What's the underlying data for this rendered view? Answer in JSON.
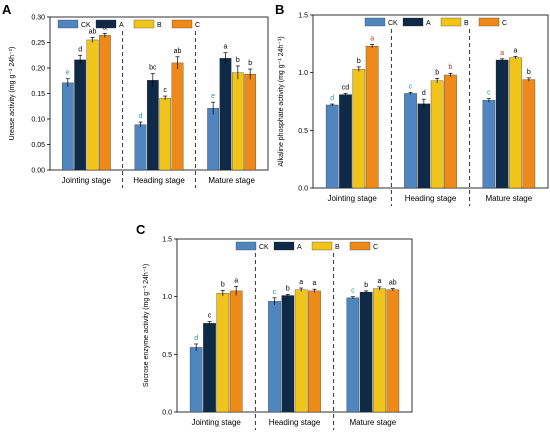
{
  "panel_letters": [
    "A",
    "B",
    "C"
  ],
  "colors": {
    "CK": "#4f86c0",
    "A": "#0e2a47",
    "B": "#f0c419",
    "C": "#ee8a1a",
    "letter_default": "#000000",
    "letter_cyan": "#1a9e8f",
    "letter_red": "#c0392b"
  },
  "chart_data": [
    {
      "type": "bar",
      "panel": "A",
      "ylabel": "Urease activity (mg g⁻¹ 24h⁻¹)",
      "ylim": [
        0,
        0.3
      ],
      "yticks": [
        "0.00",
        "0.05",
        "0.10",
        "0.15",
        "0.20",
        "0.25",
        "0.30"
      ],
      "categories": [
        "Jointing stage",
        "Heading stage",
        "Mature stage"
      ],
      "legend": [
        "CK",
        "A",
        "B",
        "C"
      ],
      "legend_position": "top-left",
      "series": [
        {
          "name": "CK",
          "values": [
            0.171,
            0.089,
            0.121
          ],
          "errors": [
            0.008,
            0.005,
            0.012
          ],
          "letters": [
            "e",
            "d",
            "e"
          ]
        },
        {
          "name": "A",
          "values": [
            0.216,
            0.176,
            0.219
          ],
          "errors": [
            0.009,
            0.013,
            0.011
          ],
          "letters": [
            "d",
            "bc",
            "a"
          ]
        },
        {
          "name": "B",
          "values": [
            0.255,
            0.141,
            0.191
          ],
          "errors": [
            0.005,
            0.004,
            0.013
          ],
          "letters": [
            "ab",
            "c",
            "b"
          ]
        },
        {
          "name": "C",
          "values": [
            0.264,
            0.21,
            0.188
          ],
          "errors": [
            0.004,
            0.012,
            0.01
          ],
          "letters": [
            "a",
            "ab",
            "b"
          ]
        }
      ]
    },
    {
      "type": "bar",
      "panel": "B",
      "ylabel": "Alkaline phosphate activity (mg g⁻¹ 24h⁻¹)",
      "ylim": [
        0,
        1.5
      ],
      "yticks": [
        "0.0",
        "0.5",
        "1.0",
        "1.5"
      ],
      "categories": [
        "Jointing stage",
        "Heading stage",
        "Mature stage"
      ],
      "legend": [
        "CK",
        "A",
        "B",
        "C"
      ],
      "legend_position": "top",
      "series": [
        {
          "name": "CK",
          "values": [
            0.72,
            0.82,
            0.76
          ],
          "errors": [
            0.008,
            0.01,
            0.015
          ],
          "letters": [
            "d",
            "c",
            "c"
          ]
        },
        {
          "name": "A",
          "values": [
            0.81,
            0.73,
            1.11
          ],
          "errors": [
            0.01,
            0.04,
            0.01
          ],
          "letters": [
            "cd",
            "d",
            "a"
          ]
        },
        {
          "name": "B",
          "values": [
            1.03,
            0.93,
            1.13
          ],
          "errors": [
            0.02,
            0.02,
            0.01
          ],
          "letters": [
            "b",
            "b",
            "a"
          ]
        },
        {
          "name": "C",
          "values": [
            1.23,
            0.98,
            0.94
          ],
          "errors": [
            0.015,
            0.015,
            0.015
          ],
          "letters": [
            "a",
            "b",
            "b"
          ]
        }
      ]
    },
    {
      "type": "bar",
      "panel": "C",
      "ylabel": "Sucrose enzyme activity (mg g⁻¹ 24h⁻¹)",
      "ylim": [
        0,
        1.5
      ],
      "yticks": [
        "0.0",
        "0.5",
        "1.0",
        "1.5"
      ],
      "categories": [
        "Jointing stage",
        "Heading stage",
        "Mature stage"
      ],
      "legend": [
        "CK",
        "A",
        "B",
        "C"
      ],
      "legend_position": "top",
      "series": [
        {
          "name": "CK",
          "values": [
            0.56,
            0.96,
            0.99
          ],
          "errors": [
            0.03,
            0.03,
            0.01
          ],
          "letters": [
            "d",
            "c",
            "c"
          ]
        },
        {
          "name": "A",
          "values": [
            0.77,
            1.01,
            1.04
          ],
          "errors": [
            0.015,
            0.01,
            0.01
          ],
          "letters": [
            "c",
            "b",
            "b"
          ]
        },
        {
          "name": "B",
          "values": [
            1.03,
            1.06,
            1.07
          ],
          "errors": [
            0.025,
            0.015,
            0.015
          ],
          "letters": [
            "b",
            "a",
            "a"
          ]
        },
        {
          "name": "C",
          "values": [
            1.05,
            1.05,
            1.06
          ],
          "errors": [
            0.04,
            0.015,
            0.01
          ],
          "letters": [
            "a",
            "a",
            "ab"
          ]
        }
      ]
    }
  ]
}
